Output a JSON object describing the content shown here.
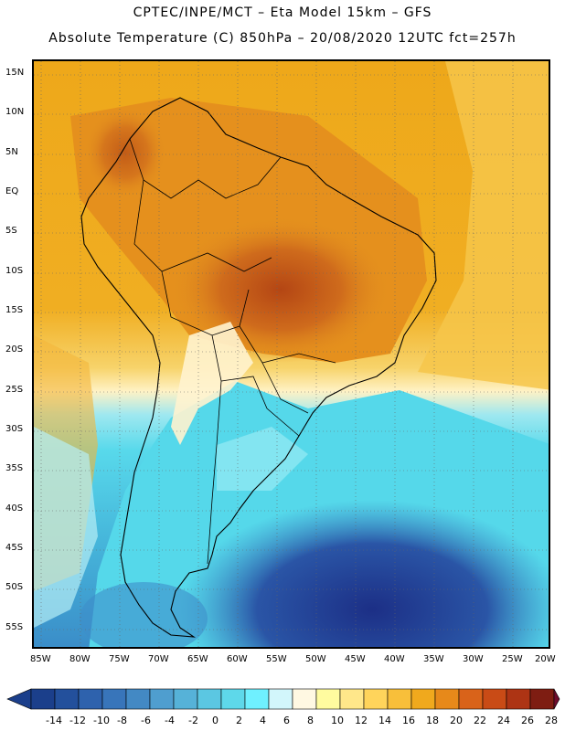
{
  "header": {
    "title_line1": "CPTEC/INPE/MCT –  Eta Model 15km – GFS",
    "title_line2": "Absolute Temperature (C) 850hPa – 20/08/2020 12UTC fct=257h"
  },
  "map": {
    "lat_labels": [
      "15N",
      "10N",
      "5N",
      "EQ",
      "5S",
      "10S",
      "15S",
      "20S",
      "25S",
      "30S",
      "35S",
      "40S",
      "45S",
      "50S",
      "55S"
    ],
    "lon_labels": [
      "85W",
      "80W",
      "75W",
      "70W",
      "65W",
      "60W",
      "55W",
      "50W",
      "45W",
      "40W",
      "35W",
      "30W",
      "25W",
      "20W"
    ],
    "colors": {
      "very_cold": "#1f3f8f",
      "cold": "#2f7fbf",
      "cool": "#4fd9ea",
      "mild": "#fff3c8",
      "warm": "#f3b51b",
      "hot": "#e98b1a",
      "very_hot": "#c8581b",
      "coast": "#000000",
      "grid": "#555555"
    }
  },
  "legend": {
    "labels": [
      "-14",
      "-12",
      "-10",
      "-8",
      "-6",
      "-4",
      "-2",
      "0",
      "2",
      "4",
      "6",
      "8",
      "10",
      "12",
      "14",
      "16",
      "18",
      "20",
      "22",
      "24",
      "26",
      "28"
    ],
    "colors": [
      "#1b3f8b",
      "#23509c",
      "#2e62ad",
      "#3875ba",
      "#4389c4",
      "#4f9ecf",
      "#56b2d8",
      "#5bc7e2",
      "#5ed8ea",
      "#6ff0ff",
      "#d2f6fb",
      "#fff8e2",
      "#fffb9f",
      "#ffe78a",
      "#ffd45b",
      "#f8bf3a",
      "#f0a91d",
      "#e7891a",
      "#d9631a",
      "#c94b16",
      "#ad3414",
      "#7e1d12",
      "#6e0b2b"
    ]
  }
}
